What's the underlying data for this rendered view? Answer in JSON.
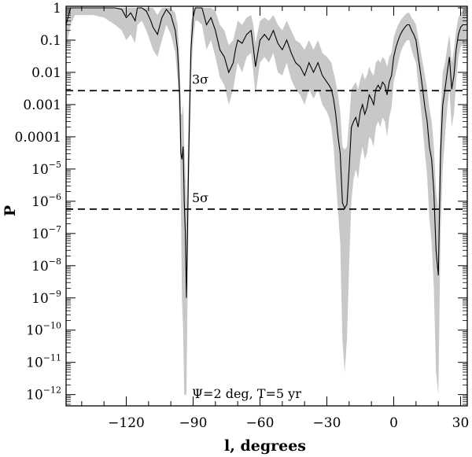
{
  "chart_data": {
    "type": "line",
    "xlabel": "l, degrees",
    "ylabel": "P",
    "xlim": [
      -147,
      33
    ],
    "ylim_log10": [
      -12.35,
      0.05
    ],
    "y_scale": "log",
    "x_ticks": [
      -120,
      -90,
      -60,
      -30,
      0,
      30
    ],
    "x_tick_labels": [
      "−120",
      "−90",
      "−60",
      "−30",
      "0",
      "30"
    ],
    "y_ticks": [
      {
        "exp": 0,
        "mant": "1",
        "sup": ""
      },
      {
        "exp": -1,
        "mant": "0.1",
        "sup": ""
      },
      {
        "exp": -2,
        "mant": "0.01",
        "sup": ""
      },
      {
        "exp": -3,
        "mant": "0.001",
        "sup": ""
      },
      {
        "exp": -4,
        "mant": "0.0001",
        "sup": ""
      },
      {
        "exp": -5,
        "mant": "10",
        "sup": "−5"
      },
      {
        "exp": -6,
        "mant": "10",
        "sup": "−6"
      },
      {
        "exp": -7,
        "mant": "10",
        "sup": "−7"
      },
      {
        "exp": -8,
        "mant": "10",
        "sup": "−8"
      },
      {
        "exp": -9,
        "mant": "10",
        "sup": "−9"
      },
      {
        "exp": -10,
        "mant": "10",
        "sup": "−10"
      },
      {
        "exp": -11,
        "mant": "10",
        "sup": "−11"
      },
      {
        "exp": -12,
        "mant": "10",
        "sup": "−12"
      }
    ],
    "reference_lines": [
      {
        "label": "3σ",
        "value": 0.0027
      },
      {
        "label": "5σ",
        "value": 5.7e-07
      }
    ],
    "annotation": "Ψ=2 deg, T=5 yr",
    "series": [
      {
        "style": "line",
        "color": "#000000",
        "x": [
          -147,
          -145,
          -143,
          -140,
          -135,
          -130,
          -125,
          -122,
          -120,
          -118,
          -116,
          -115,
          -113,
          -111,
          -109,
          -108,
          -106,
          -104,
          -102,
          -100,
          -98,
          -97,
          -96,
          -95.5,
          -95,
          -94.5,
          -94,
          -93.5,
          -93,
          -92,
          -91,
          -90,
          -89,
          -88,
          -86,
          -84,
          -82,
          -80,
          -78,
          -76,
          -74,
          -72,
          -71,
          -70,
          -68,
          -66,
          -64,
          -63,
          -62,
          -60,
          -58,
          -56,
          -54,
          -52,
          -50,
          -48,
          -46,
          -44,
          -42,
          -40,
          -38,
          -36,
          -34,
          -32,
          -30,
          -29,
          -28,
          -27,
          -26,
          -25,
          -24,
          -23,
          -22,
          -21,
          -20,
          -19,
          -18,
          -17,
          -16,
          -15,
          -14,
          -13,
          -12,
          -11,
          -10,
          -9,
          -8,
          -7,
          -6,
          -5,
          -4,
          -3,
          -2,
          -1,
          0,
          1,
          2,
          3,
          4,
          5,
          6,
          7,
          8,
          9,
          10,
          11,
          12,
          13,
          14,
          15,
          16,
          17,
          18,
          19,
          20,
          21,
          22,
          23,
          24,
          25,
          26,
          27,
          28,
          29,
          30,
          31,
          32,
          33
        ],
        "y": [
          0.3,
          1.0,
          1.0,
          1.0,
          1.0,
          1.0,
          1.0,
          0.9,
          0.5,
          0.7,
          0.4,
          1.0,
          1.0,
          0.8,
          0.4,
          0.25,
          0.15,
          0.5,
          0.9,
          0.6,
          0.2,
          0.05,
          0.002,
          3e-05,
          2e-05,
          5e-05,
          1e-06,
          1e-07,
          1e-09,
          2e-05,
          0.05,
          0.5,
          1.0,
          1.0,
          1.0,
          0.3,
          0.5,
          0.2,
          0.05,
          0.03,
          0.01,
          0.02,
          0.05,
          0.1,
          0.08,
          0.15,
          0.2,
          0.06,
          0.015,
          0.1,
          0.15,
          0.1,
          0.2,
          0.08,
          0.05,
          0.1,
          0.04,
          0.02,
          0.015,
          0.008,
          0.02,
          0.01,
          0.02,
          0.008,
          0.005,
          0.004,
          0.003,
          0.0015,
          0.0005,
          0.0001,
          3e-05,
          9e-07,
          6e-07,
          8e-07,
          1e-05,
          0.0002,
          0.0003,
          0.0004,
          0.0002,
          0.0006,
          0.001,
          0.0005,
          0.0008,
          0.002,
          0.0015,
          0.001,
          0.003,
          0.004,
          0.003,
          0.005,
          0.004,
          0.002,
          0.005,
          0.008,
          0.03,
          0.06,
          0.1,
          0.15,
          0.2,
          0.25,
          0.3,
          0.3,
          0.2,
          0.15,
          0.1,
          0.03,
          0.01,
          0.003,
          0.0008,
          0.0003,
          5e-05,
          2e-05,
          2e-06,
          3e-08,
          5e-09,
          3e-05,
          0.001,
          0.003,
          0.01,
          0.03,
          0.003,
          0.008,
          0.05,
          0.15,
          0.25,
          0.3,
          0.3,
          0.3
        ]
      },
      {
        "style": "band",
        "color": "#c8c8c8",
        "x": [
          -147,
          -145,
          -143,
          -140,
          -135,
          -130,
          -125,
          -122,
          -120,
          -118,
          -116,
          -115,
          -113,
          -111,
          -109,
          -108,
          -106,
          -104,
          -102,
          -100,
          -98,
          -97,
          -96,
          -95.5,
          -95,
          -94.5,
          -94,
          -93.5,
          -93,
          -92,
          -91,
          -90,
          -89,
          -88,
          -86,
          -84,
          -82,
          -80,
          -78,
          -76,
          -74,
          -72,
          -71,
          -70,
          -68,
          -66,
          -64,
          -63,
          -62,
          -60,
          -58,
          -56,
          -54,
          -52,
          -50,
          -48,
          -46,
          -44,
          -42,
          -40,
          -38,
          -36,
          -34,
          -32,
          -30,
          -29,
          -28,
          -27,
          -26,
          -25,
          -24,
          -23,
          -22,
          -21,
          -20,
          -19,
          -18,
          -17,
          -16,
          -15,
          -14,
          -13,
          -12,
          -11,
          -10,
          -9,
          -8,
          -7,
          -6,
          -5,
          -4,
          -3,
          -2,
          -1,
          0,
          1,
          2,
          3,
          4,
          5,
          6,
          7,
          8,
          9,
          10,
          11,
          12,
          13,
          14,
          15,
          16,
          17,
          18,
          19,
          20,
          21,
          22,
          23,
          24,
          25,
          26,
          27,
          28,
          29,
          30,
          31,
          32,
          33
        ],
        "y_low": [
          0.05,
          0.3,
          0.6,
          0.6,
          0.6,
          0.5,
          0.3,
          0.2,
          0.1,
          0.15,
          0.08,
          0.3,
          0.4,
          0.2,
          0.08,
          0.05,
          0.03,
          0.1,
          0.3,
          0.15,
          0.04,
          0.006,
          0.0002,
          1e-06,
          1e-09,
          1e-10,
          1e-12,
          1e-12,
          1e-12,
          1e-06,
          0.005,
          0.1,
          0.4,
          0.4,
          0.3,
          0.05,
          0.1,
          0.03,
          0.007,
          0.004,
          0.001,
          0.003,
          0.008,
          0.02,
          0.01,
          0.03,
          0.04,
          0.01,
          0.002,
          0.02,
          0.03,
          0.02,
          0.04,
          0.01,
          0.008,
          0.02,
          0.006,
          0.003,
          0.002,
          0.001,
          0.003,
          0.0015,
          0.003,
          0.001,
          0.0006,
          0.0004,
          0.0002,
          5e-05,
          5e-06,
          5e-07,
          5e-08,
          5e-11,
          5e-12,
          5e-11,
          1e-08,
          1e-06,
          5e-06,
          1e-05,
          5e-06,
          2e-05,
          5e-05,
          2e-05,
          3e-05,
          0.0001,
          8e-05,
          5e-05,
          0.0002,
          0.0003,
          0.0002,
          0.0004,
          0.0003,
          0.0001,
          0.0004,
          0.0008,
          0.005,
          0.01,
          0.02,
          0.04,
          0.06,
          0.08,
          0.1,
          0.1,
          0.05,
          0.03,
          0.02,
          0.004,
          0.001,
          0.0002,
          3e-05,
          6e-06,
          3e-07,
          5e-08,
          2e-09,
          5e-12,
          1e-12,
          1e-07,
          1e-05,
          0.0001,
          0.0008,
          0.003,
          0.0002,
          0.0005,
          0.005,
          0.03,
          0.06,
          0.08,
          0.1,
          0.1
        ],
        "y_high": [
          1,
          1,
          1,
          1,
          1,
          1,
          1,
          1,
          1,
          1,
          1,
          1,
          1,
          1,
          1,
          1,
          0.6,
          1,
          1,
          1,
          0.7,
          0.3,
          0.02,
          0.0005,
          0.0005,
          0.001,
          5e-05,
          1e-05,
          5e-07,
          0.0005,
          0.3,
          1,
          1,
          1,
          1,
          1,
          1,
          0.8,
          0.3,
          0.2,
          0.07,
          0.1,
          0.2,
          0.4,
          0.3,
          0.5,
          0.6,
          0.3,
          0.08,
          0.4,
          0.5,
          0.4,
          0.6,
          0.3,
          0.2,
          0.4,
          0.2,
          0.1,
          0.08,
          0.05,
          0.1,
          0.05,
          0.1,
          0.04,
          0.03,
          0.025,
          0.02,
          0.01,
          0.005,
          0.002,
          0.0006,
          5e-05,
          4e-05,
          5e-05,
          0.0003,
          0.003,
          0.004,
          0.005,
          0.003,
          0.006,
          0.01,
          0.006,
          0.008,
          0.015,
          0.01,
          0.008,
          0.02,
          0.025,
          0.02,
          0.03,
          0.025,
          0.015,
          0.03,
          0.04,
          0.12,
          0.2,
          0.3,
          0.4,
          0.5,
          0.6,
          0.7,
          0.7,
          0.5,
          0.4,
          0.3,
          0.12,
          0.05,
          0.02,
          0.008,
          0.003,
          0.0008,
          0.0003,
          5e-05,
          2e-06,
          5e-07,
          0.0005,
          0.01,
          0.02,
          0.06,
          0.15,
          0.02,
          0.05,
          0.2,
          0.5,
          0.7,
          0.8,
          0.9,
          0.9
        ]
      }
    ]
  }
}
